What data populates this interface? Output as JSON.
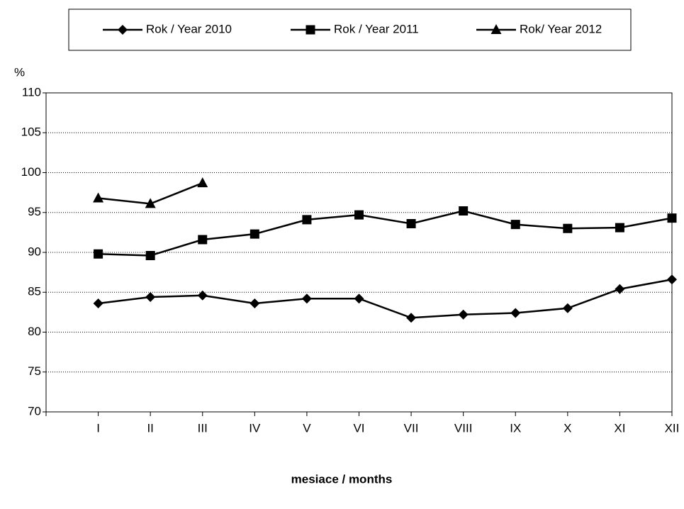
{
  "chart_data": {
    "type": "line",
    "y_label": "%",
    "x_label": "mesiace / months",
    "categories": [
      "I",
      "II",
      "III",
      "IV",
      "V",
      "VI",
      "VII",
      "VIII",
      "IX",
      "X",
      "XI",
      "XII"
    ],
    "series": [
      {
        "name": "Rok / Year 2010",
        "color": "#000000",
        "marker": "diamond",
        "values": [
          83.6,
          84.4,
          84.6,
          83.6,
          84.2,
          84.2,
          81.8,
          82.2,
          82.4,
          83.0,
          85.4,
          86.6
        ]
      },
      {
        "name": "Rok / Year 2011",
        "color": "#000000",
        "marker": "square",
        "values": [
          89.8,
          89.6,
          91.6,
          92.3,
          94.1,
          94.7,
          93.6,
          95.2,
          93.5,
          93.0,
          93.1,
          94.3
        ]
      },
      {
        "name": "Rok/ Year 2012",
        "color": "#000000",
        "marker": "triangle",
        "values": [
          96.8,
          96.1,
          98.7,
          null,
          null,
          null,
          null,
          null,
          null,
          null,
          null,
          null
        ]
      }
    ],
    "ylim": [
      70,
      110
    ],
    "yticks": [
      70,
      75,
      80,
      85,
      90,
      95,
      100,
      105,
      110
    ],
    "grid": true,
    "legend": "top"
  }
}
